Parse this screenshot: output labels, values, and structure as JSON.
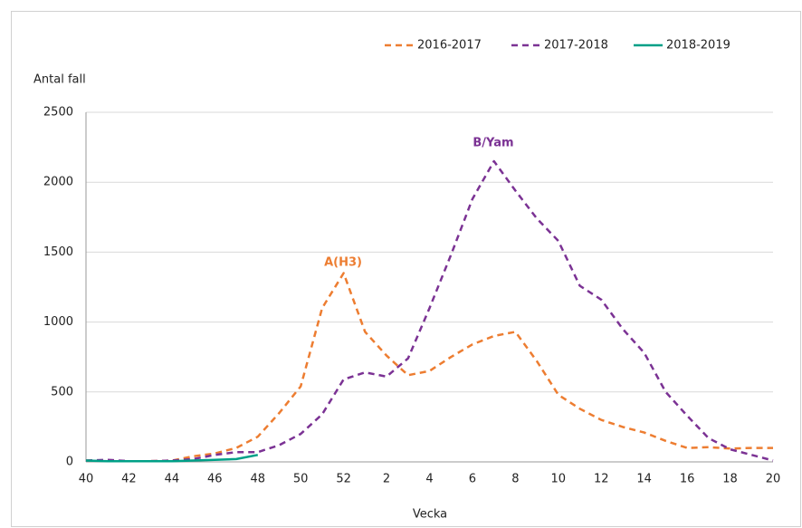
{
  "chart_data": {
    "type": "line",
    "y_label": "Antal fall",
    "x_label": "Vecka",
    "categories": [
      "40",
      null,
      "42",
      null,
      "44",
      null,
      "46",
      null,
      "48",
      null,
      "50",
      null,
      "52",
      null,
      "2",
      null,
      "4",
      null,
      "6",
      null,
      "8",
      null,
      "10",
      null,
      "12",
      null,
      "14",
      null,
      "16",
      null,
      "18",
      null,
      "20"
    ],
    "series": [
      {
        "name": "2016-2017",
        "color": "#ed7d31",
        "dashed": true,
        "values": [
          10,
          10,
          5,
          5,
          10,
          40,
          60,
          100,
          180,
          350,
          540,
          1100,
          1350,
          930,
          760,
          620,
          650,
          750,
          840,
          900,
          930,
          720,
          480,
          380,
          300,
          250,
          210,
          150,
          100,
          105,
          95,
          100,
          100
        ]
      },
      {
        "name": "2017-2018",
        "color": "#7b3294",
        "dashed": true,
        "values": [
          10,
          15,
          5,
          5,
          10,
          20,
          50,
          70,
          70,
          120,
          200,
          340,
          590,
          640,
          610,
          740,
          1100,
          1480,
          1880,
          2150,
          1940,
          1740,
          1580,
          1260,
          1160,
          950,
          780,
          500,
          330,
          170,
          90,
          50,
          10
        ]
      },
      {
        "name": "2018-2019",
        "color": "#00a087",
        "dashed": false,
        "values": [
          10,
          5,
          5,
          5,
          5,
          10,
          15,
          20,
          50,
          null,
          null,
          null,
          null,
          null,
          null,
          null,
          null,
          null,
          null,
          null,
          null,
          null,
          null,
          null,
          null,
          null,
          null,
          null,
          null,
          null,
          null,
          null,
          null
        ]
      }
    ],
    "annotations": [
      {
        "text": "A(H3)",
        "color": "#ed7d31"
      },
      {
        "text": "B/Yam",
        "color": "#7b3294"
      }
    ],
    "ylim": [
      0,
      2500
    ],
    "yticks": [
      0,
      500,
      1000,
      1500,
      2000,
      2500
    ],
    "grid": true,
    "legend": "top"
  }
}
